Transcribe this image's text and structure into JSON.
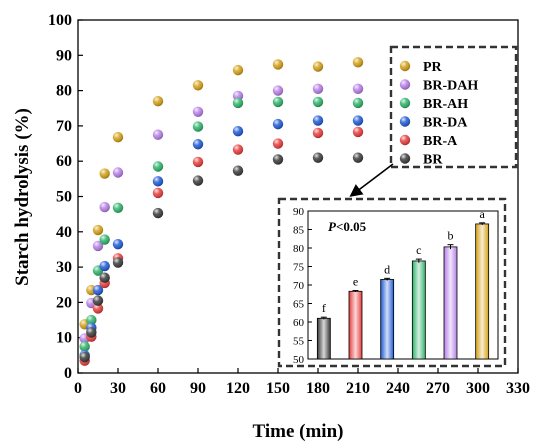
{
  "chart_data": [
    {
      "type": "scatter",
      "title": "",
      "xlabel": "Time (min)",
      "ylabel": "Starch hydrolysis (%)",
      "xlim": [
        0,
        330
      ],
      "ylim": [
        0,
        100
      ],
      "xticks": [
        "0",
        "30",
        "60",
        "90",
        "120",
        "150",
        "180",
        "210",
        "240",
        "270",
        "300",
        "330"
      ],
      "yticks": [
        "0",
        "10",
        "20",
        "30",
        "40",
        "50",
        "60",
        "70",
        "80",
        "90",
        "100"
      ],
      "x": [
        5,
        10,
        15,
        20,
        30,
        60,
        90,
        120,
        150,
        180,
        210
      ],
      "grid": false,
      "legend_position": "top-right",
      "series": [
        {
          "name": "PR",
          "color": "#d4a017",
          "values": [
            13.8,
            23.5,
            40.5,
            56.5,
            66.8,
            77.0,
            81.5,
            85.8,
            87.4,
            86.8,
            88.0
          ]
        },
        {
          "name": "BR-DAH",
          "color": "#b77fe8",
          "values": [
            9.8,
            19.8,
            36.0,
            47.0,
            56.8,
            67.5,
            74.0,
            78.5,
            80.0,
            80.5,
            80.5
          ]
        },
        {
          "name": "BR-AH",
          "color": "#2fb36a",
          "values": [
            7.5,
            15.0,
            29.0,
            37.8,
            46.8,
            58.5,
            69.8,
            76.5,
            76.8,
            76.8,
            76.5
          ]
        },
        {
          "name": "BR-DA",
          "color": "#1f5ad6",
          "values": [
            5.0,
            12.8,
            23.5,
            30.3,
            36.5,
            54.3,
            64.8,
            68.5,
            70.5,
            71.5,
            71.5
          ]
        },
        {
          "name": "BR-A",
          "color": "#e83c3c",
          "values": [
            3.5,
            10.3,
            18.3,
            25.5,
            32.5,
            51.0,
            59.8,
            63.3,
            65.0,
            68.0,
            68.3
          ]
        },
        {
          "name": "BR",
          "color": "#3a3a3a",
          "values": [
            4.5,
            11.5,
            20.5,
            27.0,
            31.3,
            45.3,
            54.5,
            57.3,
            60.5,
            61.0,
            61.0
          ]
        }
      ]
    },
    {
      "type": "bar",
      "annotation_italic": "P",
      "annotation_rest": "<0.05",
      "ylim": [
        50,
        90
      ],
      "yticks": [
        "50",
        "55",
        "60",
        "65",
        "70",
        "75",
        "80",
        "85",
        "90"
      ],
      "categories": [
        "BR",
        "BR-A",
        "BR-DA",
        "BR-AH",
        "BR-DAH",
        "PR"
      ],
      "values": [
        61.0,
        68.3,
        71.5,
        76.5,
        80.3,
        86.5
      ],
      "errors": [
        0.3,
        0.2,
        0.3,
        0.5,
        0.6,
        0.3
      ],
      "letters": [
        "f",
        "e",
        "d",
        "c",
        "b",
        "a"
      ],
      "colors": [
        "#3a3a3a",
        "#e83c3c",
        "#1f5ad6",
        "#2fb36a",
        "#b77fe8",
        "#d4a017"
      ]
    }
  ]
}
